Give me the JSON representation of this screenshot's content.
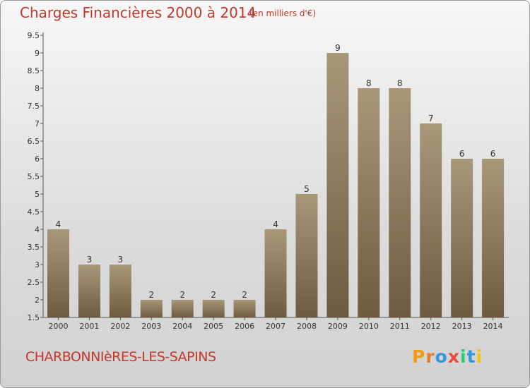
{
  "header": {
    "title": "Charges Financières 2000 à 2014",
    "unit": "(en milliers d'€)"
  },
  "footer": {
    "commune": "CHARBONNIèRES-LES-SAPINS",
    "logo": "Proxiti"
  },
  "chart_data": {
    "type": "bar",
    "title": "Charges Financières 2000 à 2014",
    "subtitle": "(en milliers d'€)",
    "categories": [
      "2000",
      "2001",
      "2002",
      "2003",
      "2004",
      "2005",
      "2006",
      "2007",
      "2008",
      "2009",
      "2010",
      "2011",
      "2012",
      "2013",
      "2014"
    ],
    "values": [
      4,
      3,
      3,
      2,
      2,
      2,
      2,
      4,
      5,
      9,
      8,
      8,
      7,
      6,
      6
    ],
    "data_labels": [
      "4",
      "3",
      "3",
      "2",
      "2",
      "2",
      "2",
      "4",
      "5",
      "9",
      "8",
      "8",
      "7",
      "6",
      "6"
    ],
    "ylim": [
      1.5,
      9.5
    ],
    "yticks": [
      "1.5",
      "2",
      "2.5",
      "3",
      "3.5",
      "4",
      "4.5",
      "5",
      "5.5",
      "6",
      "6.5",
      "7",
      "7.5",
      "8",
      "8.5",
      "9",
      "9.5"
    ],
    "grid": false,
    "colors": {
      "bar_top": "#a8987a",
      "bar_bottom": "#6e5b3f",
      "text": "#c0392b",
      "axis": "#555555"
    }
  }
}
